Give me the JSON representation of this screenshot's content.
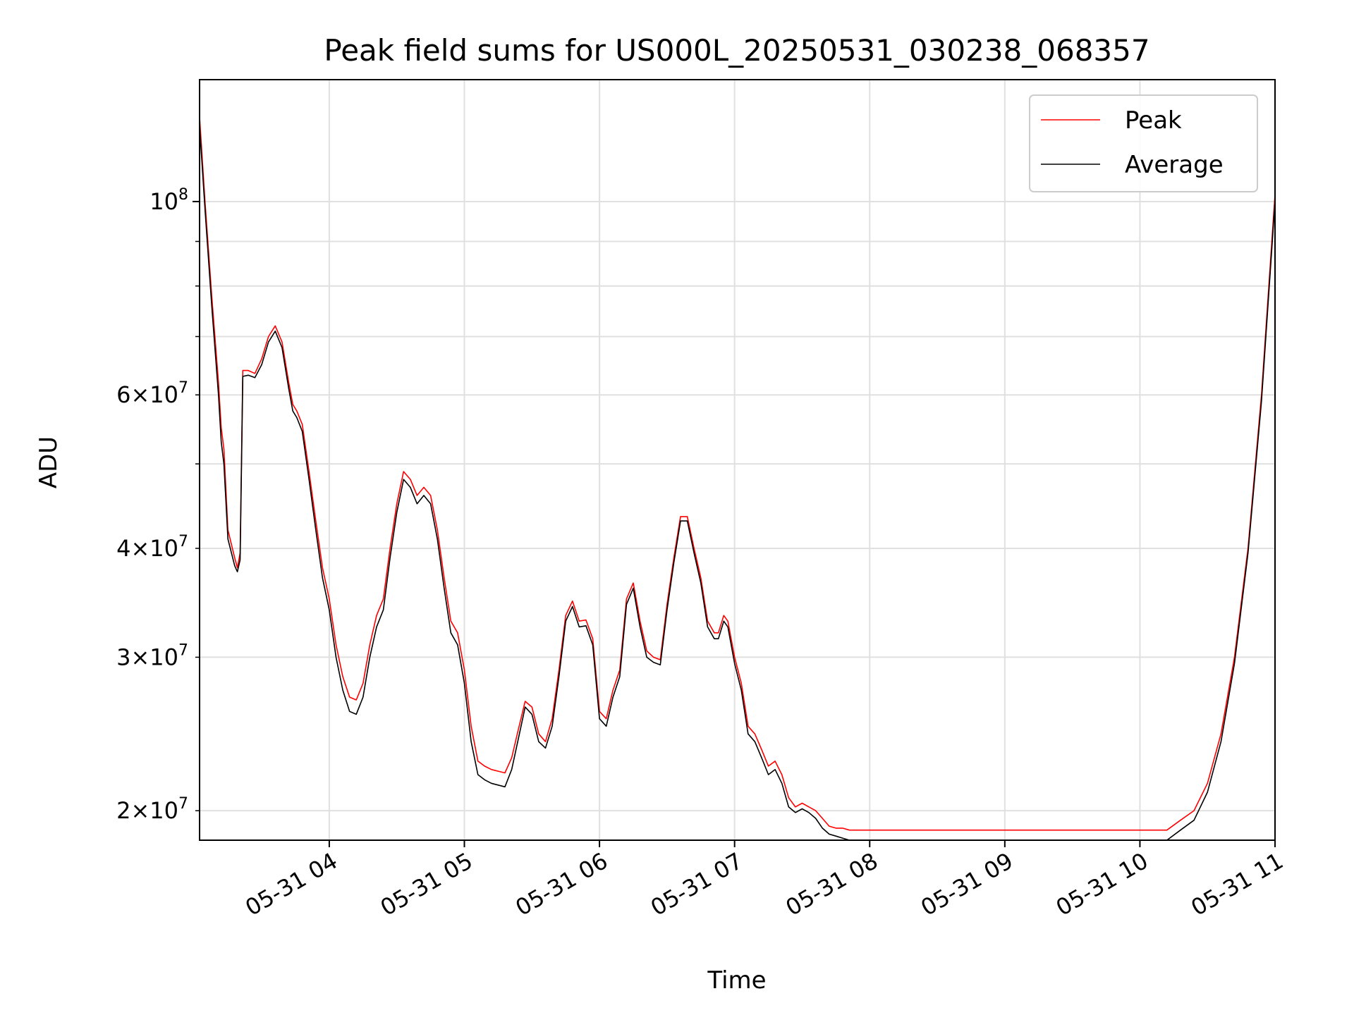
{
  "chart_data": {
    "type": "line",
    "title": "Peak field sums for US000L_20250531_030238_068357",
    "xlabel": "Time",
    "ylabel": "ADU",
    "x_unit": "hours of day, 2025-05-31",
    "xlim": [
      3.04,
      11.0
    ],
    "ylim": [
      18500000,
      138000000
    ],
    "yscale": "log",
    "grid": true,
    "legend_position": "top-right",
    "x_ticks": [
      {
        "value": 4,
        "label": "05-31 04"
      },
      {
        "value": 5,
        "label": "05-31 05"
      },
      {
        "value": 6,
        "label": "05-31 06"
      },
      {
        "value": 7,
        "label": "05-31 07"
      },
      {
        "value": 8,
        "label": "05-31 08"
      },
      {
        "value": 9,
        "label": "05-31 09"
      },
      {
        "value": 10,
        "label": "05-31 10"
      },
      {
        "value": 11,
        "label": "05-31 11"
      }
    ],
    "y_major_ticks": [
      {
        "value": 100000000,
        "mantissa": "",
        "exponent": "8"
      }
    ],
    "y_minor_ticks": [
      {
        "value": 20000000,
        "mantissa": "2",
        "exponent": "7"
      },
      {
        "value": 30000000,
        "mantissa": "3",
        "exponent": "7"
      },
      {
        "value": 40000000,
        "mantissa": "4",
        "exponent": "7"
      },
      {
        "value": 50000000,
        "mantissa": "",
        "exponent": ""
      },
      {
        "value": 60000000,
        "mantissa": "6",
        "exponent": "7"
      },
      {
        "value": 70000000,
        "mantissa": "",
        "exponent": ""
      },
      {
        "value": 80000000,
        "mantissa": "",
        "exponent": ""
      },
      {
        "value": 90000000,
        "mantissa": "",
        "exponent": ""
      }
    ],
    "series": [
      {
        "name": "Peak",
        "color": "#ff0000",
        "x": [
          3.04,
          3.08,
          3.13,
          3.18,
          3.2,
          3.22,
          3.25,
          3.3,
          3.32,
          3.34,
          3.36,
          3.4,
          3.45,
          3.5,
          3.55,
          3.6,
          3.65,
          3.7,
          3.73,
          3.76,
          3.8,
          3.85,
          3.9,
          3.95,
          4.0,
          4.05,
          4.1,
          4.15,
          4.2,
          4.25,
          4.3,
          4.35,
          4.4,
          4.45,
          4.5,
          4.55,
          4.6,
          4.65,
          4.7,
          4.75,
          4.8,
          4.85,
          4.9,
          4.95,
          5.0,
          5.05,
          5.1,
          5.15,
          5.2,
          5.25,
          5.3,
          5.35,
          5.4,
          5.45,
          5.5,
          5.55,
          5.6,
          5.65,
          5.7,
          5.75,
          5.8,
          5.85,
          5.9,
          5.95,
          6.0,
          6.05,
          6.1,
          6.15,
          6.2,
          6.25,
          6.3,
          6.35,
          6.4,
          6.45,
          6.5,
          6.55,
          6.6,
          6.65,
          6.7,
          6.75,
          6.8,
          6.85,
          6.88,
          6.92,
          6.95,
          7.0,
          7.05,
          7.1,
          7.15,
          7.2,
          7.25,
          7.3,
          7.35,
          7.4,
          7.45,
          7.5,
          7.55,
          7.6,
          7.65,
          7.7,
          7.75,
          7.8,
          7.85,
          7.9,
          7.95,
          8.0,
          8.05,
          8.1,
          8.15,
          8.2,
          8.3,
          8.4,
          8.5,
          8.6,
          8.8,
          9.0,
          9.2,
          9.4,
          9.6,
          9.8,
          10.0,
          10.2,
          10.3,
          10.4,
          10.5,
          10.6,
          10.7,
          10.8,
          10.9,
          11.0
        ],
        "y": [
          125000000,
          100000000,
          78000000,
          62000000,
          55000000,
          52000000,
          42000000,
          39000000,
          38000000,
          39500000,
          64000000,
          64000000,
          63500000,
          66000000,
          70000000,
          72000000,
          69000000,
          62000000,
          58500000,
          57500000,
          55500000,
          49000000,
          43000000,
          38000000,
          35000000,
          31000000,
          28500000,
          27000000,
          26800000,
          28000000,
          31000000,
          33500000,
          35000000,
          40000000,
          45000000,
          49000000,
          48000000,
          46000000,
          47000000,
          46000000,
          42000000,
          37000000,
          33000000,
          32000000,
          29000000,
          25000000,
          22800000,
          22500000,
          22300000,
          22200000,
          22100000,
          23000000,
          24800000,
          26700000,
          26300000,
          24500000,
          24000000,
          25500000,
          29000000,
          33500000,
          34800000,
          33000000,
          33100000,
          31500000,
          26000000,
          25500000,
          27500000,
          29000000,
          35000000,
          36500000,
          33000000,
          30500000,
          30000000,
          29800000,
          34500000,
          39000000,
          43500000,
          43500000,
          40000000,
          37000000,
          33000000,
          32000000,
          32000000,
          33500000,
          33000000,
          30000000,
          28000000,
          25000000,
          24500000,
          23500000,
          22500000,
          22800000,
          22000000,
          20700000,
          20200000,
          20400000,
          20200000,
          20000000,
          19600000,
          19200000,
          19100000,
          19100000,
          19000000,
          19000000,
          19000000,
          19000000,
          19000000,
          19000000,
          19000000,
          19000000,
          19000000,
          19000000,
          19000000,
          19000000,
          19000000,
          19000000,
          19000000,
          19000000,
          19000000,
          19000000,
          19000000,
          19000000,
          19500000,
          20000000,
          21500000,
          24500000,
          30000000,
          40000000,
          60000000,
          102000000
        ]
      },
      {
        "name": "Average",
        "color": "#000000",
        "x": [
          3.04,
          3.08,
          3.13,
          3.18,
          3.2,
          3.22,
          3.25,
          3.3,
          3.32,
          3.34,
          3.36,
          3.4,
          3.45,
          3.5,
          3.55,
          3.6,
          3.65,
          3.7,
          3.73,
          3.76,
          3.8,
          3.85,
          3.9,
          3.95,
          4.0,
          4.05,
          4.1,
          4.15,
          4.2,
          4.25,
          4.3,
          4.35,
          4.4,
          4.45,
          4.5,
          4.55,
          4.6,
          4.65,
          4.7,
          4.75,
          4.8,
          4.85,
          4.9,
          4.95,
          5.0,
          5.05,
          5.1,
          5.15,
          5.2,
          5.25,
          5.3,
          5.35,
          5.4,
          5.45,
          5.5,
          5.55,
          5.6,
          5.65,
          5.7,
          5.75,
          5.8,
          5.85,
          5.9,
          5.95,
          6.0,
          6.05,
          6.1,
          6.15,
          6.2,
          6.25,
          6.3,
          6.35,
          6.4,
          6.45,
          6.5,
          6.55,
          6.6,
          6.65,
          6.7,
          6.75,
          6.8,
          6.85,
          6.88,
          6.92,
          6.95,
          7.0,
          7.05,
          7.1,
          7.15,
          7.2,
          7.25,
          7.3,
          7.35,
          7.4,
          7.45,
          7.5,
          7.55,
          7.6,
          7.65,
          7.7,
          7.75,
          7.8,
          7.85,
          7.9,
          7.95,
          8.0,
          8.05,
          8.1,
          8.15,
          8.2,
          8.3,
          8.4,
          8.5,
          8.6,
          8.8,
          9.0,
          9.2,
          9.4,
          9.6,
          9.8,
          10.0,
          10.2,
          10.3,
          10.4,
          10.5,
          10.6,
          10.7,
          10.8,
          10.9,
          11.0
        ],
        "y": [
          122000000,
          98000000,
          76000000,
          60000000,
          53000000,
          50000000,
          41000000,
          38200000,
          37600000,
          38800000,
          63000000,
          63200000,
          62800000,
          65000000,
          69000000,
          71000000,
          68000000,
          61000000,
          57500000,
          56500000,
          54500000,
          48000000,
          42000000,
          37000000,
          34000000,
          30000000,
          27500000,
          26000000,
          25800000,
          27000000,
          30000000,
          32500000,
          34000000,
          39000000,
          44000000,
          48000000,
          47000000,
          45000000,
          46000000,
          45000000,
          41000000,
          36000000,
          32000000,
          31000000,
          28000000,
          24000000,
          22000000,
          21700000,
          21500000,
          21400000,
          21300000,
          22300000,
          24200000,
          26300000,
          25800000,
          24000000,
          23600000,
          25000000,
          28500000,
          33000000,
          34300000,
          32500000,
          32600000,
          31000000,
          25500000,
          25000000,
          27000000,
          28500000,
          34500000,
          36000000,
          32500000,
          30000000,
          29600000,
          29400000,
          34000000,
          38500000,
          43000000,
          43000000,
          39500000,
          36500000,
          32500000,
          31500000,
          31500000,
          33000000,
          32500000,
          29500000,
          27500000,
          24500000,
          24000000,
          23000000,
          22000000,
          22300000,
          21500000,
          20200000,
          19900000,
          20100000,
          19900000,
          19600000,
          19100000,
          18800000,
          18700000,
          18600000,
          18500000,
          18500000,
          18500000,
          18500000,
          18500000,
          18500000,
          18500000,
          18500000,
          18500000,
          18500000,
          18500000,
          18500000,
          18500000,
          18500000,
          18500000,
          18500000,
          18500000,
          18500000,
          18500000,
          18500000,
          19000000,
          19500000,
          21000000,
          24000000,
          29500000,
          39500000,
          59000000,
          100000000
        ]
      }
    ]
  }
}
